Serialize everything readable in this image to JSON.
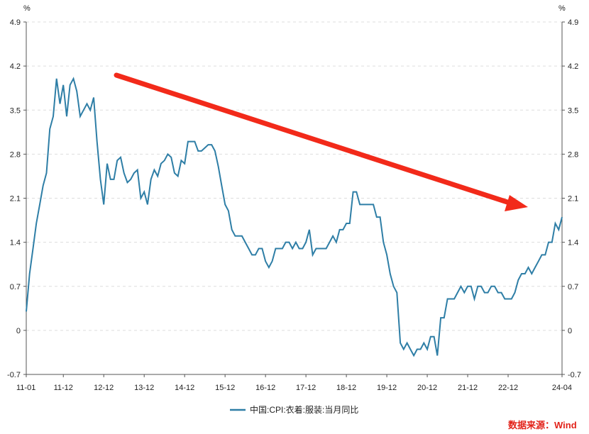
{
  "chart_data": {
    "type": "line",
    "title": "",
    "unit_left": "%",
    "unit_right": "%",
    "ylim": [
      -0.7,
      4.9
    ],
    "y_ticks": [
      "4.9",
      "4.2",
      "3.5",
      "2.8",
      "2.1",
      "1.4",
      "0.7",
      "0",
      "-0.7"
    ],
    "x_ticks": [
      "11-01",
      "11-12",
      "12-12",
      "13-12",
      "14-12",
      "15-12",
      "16-12",
      "17-12",
      "18-12",
      "19-12",
      "20-12",
      "21-12",
      "22-12",
      "24-04"
    ],
    "grid": true,
    "legend_position": "bottom",
    "series": [
      {
        "name": "中国:CPI:衣着:服装:当月同比",
        "color": "#2e7ea6",
        "x": [
          "2011-01",
          "2011-02",
          "2011-03",
          "2011-04",
          "2011-05",
          "2011-06",
          "2011-07",
          "2011-08",
          "2011-09",
          "2011-10",
          "2011-11",
          "2011-12",
          "2012-01",
          "2012-02",
          "2012-03",
          "2012-04",
          "2012-05",
          "2012-06",
          "2012-07",
          "2012-08",
          "2012-09",
          "2012-10",
          "2012-11",
          "2012-12",
          "2013-01",
          "2013-02",
          "2013-03",
          "2013-04",
          "2013-05",
          "2013-06",
          "2013-07",
          "2013-08",
          "2013-09",
          "2013-10",
          "2013-11",
          "2013-12",
          "2014-01",
          "2014-02",
          "2014-03",
          "2014-04",
          "2014-05",
          "2014-06",
          "2014-07",
          "2014-08",
          "2014-09",
          "2014-10",
          "2014-11",
          "2014-12",
          "2015-01",
          "2015-02",
          "2015-03",
          "2015-04",
          "2015-05",
          "2015-06",
          "2015-07",
          "2015-08",
          "2015-09",
          "2015-10",
          "2015-11",
          "2015-12",
          "2016-01",
          "2016-02",
          "2016-03",
          "2016-04",
          "2016-05",
          "2016-06",
          "2016-07",
          "2016-08",
          "2016-09",
          "2016-10",
          "2016-11",
          "2016-12",
          "2017-01",
          "2017-02",
          "2017-03",
          "2017-04",
          "2017-05",
          "2017-06",
          "2017-07",
          "2017-08",
          "2017-09",
          "2017-10",
          "2017-11",
          "2017-12",
          "2018-01",
          "2018-02",
          "2018-03",
          "2018-04",
          "2018-05",
          "2018-06",
          "2018-07",
          "2018-08",
          "2018-09",
          "2018-10",
          "2018-11",
          "2018-12",
          "2019-01",
          "2019-02",
          "2019-03",
          "2019-04",
          "2019-05",
          "2019-06",
          "2019-07",
          "2019-08",
          "2019-09",
          "2019-10",
          "2019-11",
          "2019-12",
          "2020-01",
          "2020-02",
          "2020-03",
          "2020-04",
          "2020-05",
          "2020-06",
          "2020-07",
          "2020-08",
          "2020-09",
          "2020-10",
          "2020-11",
          "2020-12",
          "2021-01",
          "2021-02",
          "2021-03",
          "2021-04",
          "2021-05",
          "2021-06",
          "2021-07",
          "2021-08",
          "2021-09",
          "2021-10",
          "2021-11",
          "2021-12",
          "2022-01",
          "2022-02",
          "2022-03",
          "2022-04",
          "2022-05",
          "2022-06",
          "2022-07",
          "2022-08",
          "2022-09",
          "2022-10",
          "2022-11",
          "2022-12",
          "2023-01",
          "2023-02",
          "2023-03",
          "2023-04",
          "2023-05",
          "2023-06",
          "2023-07",
          "2023-08",
          "2023-09",
          "2023-10",
          "2023-11",
          "2023-12",
          "2024-01",
          "2024-02",
          "2024-03",
          "2024-04"
        ],
        "values": [
          0.3,
          0.9,
          1.3,
          1.7,
          2.0,
          2.3,
          2.5,
          3.2,
          3.4,
          4.0,
          3.6,
          3.9,
          3.4,
          3.9,
          4.0,
          3.8,
          3.4,
          3.5,
          3.6,
          3.5,
          3.7,
          3.0,
          2.4,
          2.0,
          2.65,
          2.4,
          2.4,
          2.7,
          2.75,
          2.5,
          2.35,
          2.4,
          2.5,
          2.55,
          2.1,
          2.2,
          2.0,
          2.4,
          2.55,
          2.45,
          2.65,
          2.7,
          2.8,
          2.75,
          2.5,
          2.45,
          2.7,
          2.65,
          3.0,
          3.0,
          3.0,
          2.85,
          2.85,
          2.9,
          2.95,
          2.95,
          2.85,
          2.6,
          2.3,
          2.0,
          1.9,
          1.6,
          1.5,
          1.5,
          1.5,
          1.4,
          1.3,
          1.2,
          1.2,
          1.3,
          1.3,
          1.1,
          1.0,
          1.1,
          1.3,
          1.3,
          1.3,
          1.4,
          1.4,
          1.3,
          1.4,
          1.3,
          1.3,
          1.4,
          1.6,
          1.2,
          1.3,
          1.3,
          1.3,
          1.3,
          1.4,
          1.5,
          1.4,
          1.6,
          1.6,
          1.7,
          1.7,
          2.2,
          2.2,
          2.0,
          2.0,
          2.0,
          2.0,
          2.0,
          1.8,
          1.8,
          1.4,
          1.2,
          0.9,
          0.7,
          0.6,
          -0.2,
          -0.3,
          -0.2,
          -0.3,
          -0.4,
          -0.3,
          -0.3,
          -0.2,
          -0.3,
          -0.1,
          -0.1,
          -0.4,
          0.2,
          0.2,
          0.5,
          0.5,
          0.5,
          0.6,
          0.7,
          0.6,
          0.7,
          0.7,
          0.5,
          0.7,
          0.7,
          0.6,
          0.6,
          0.7,
          0.7,
          0.6,
          0.6,
          0.5,
          0.5,
          0.5,
          0.6,
          0.8,
          0.9,
          0.9,
          1.0,
          0.9,
          1.0,
          1.1,
          1.2,
          1.2,
          1.4,
          1.4,
          1.7,
          1.6,
          1.8
        ]
      }
    ],
    "annotation": "downward trend arrow",
    "annotation_color": "#f22a1a"
  },
  "source_text": "数据来源：Wind"
}
